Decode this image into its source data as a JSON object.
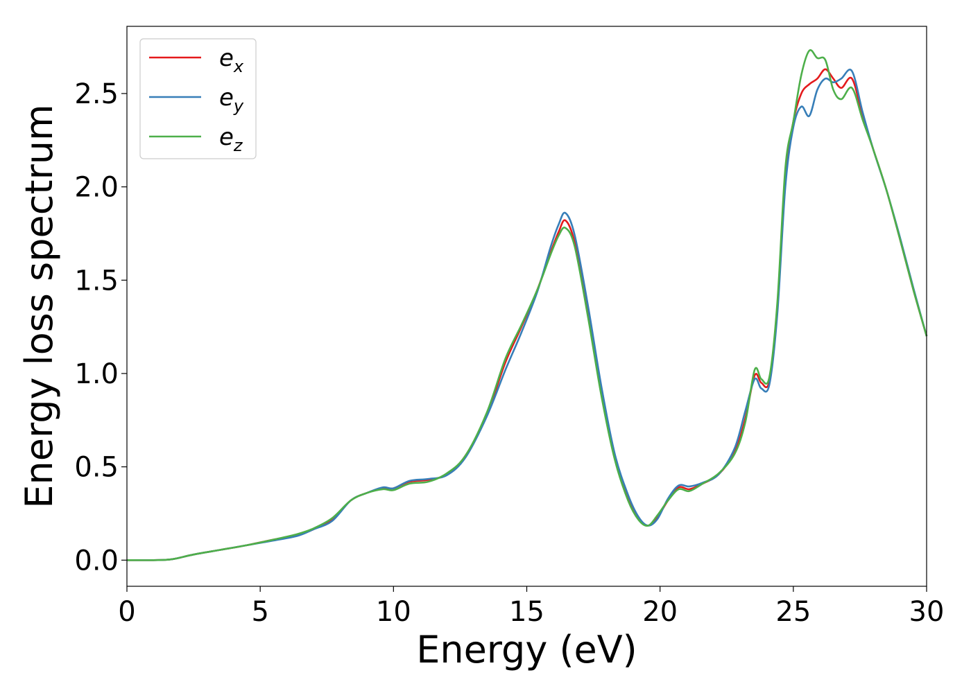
{
  "chart_data": {
    "type": "line",
    "title": "",
    "xlabel": "Energy (eV)",
    "ylabel": "Energy loss spectrum",
    "xlim": [
      0,
      30
    ],
    "ylim": [
      -0.14,
      2.86
    ],
    "xticks": [
      0,
      5,
      10,
      15,
      20,
      25,
      30
    ],
    "xtick_labels": [
      "0",
      "5",
      "10",
      "15",
      "20",
      "25",
      "30"
    ],
    "yticks": [
      0.0,
      0.5,
      1.0,
      1.5,
      2.0,
      2.5
    ],
    "ytick_labels": [
      "0.0",
      "0.5",
      "1.0",
      "1.5",
      "2.0",
      "2.5"
    ],
    "grid": false,
    "legend_position": "top-left",
    "x": [
      0,
      1,
      1.7,
      2.5,
      3.5,
      4.5,
      5.5,
      6.4,
      7.0,
      7.7,
      8.4,
      9.0,
      9.6,
      10.0,
      10.6,
      11.3,
      12.0,
      12.7,
      13.5,
      14.2,
      14.8,
      15.4,
      15.9,
      16.2,
      16.45,
      16.8,
      17.3,
      17.8,
      18.3,
      18.8,
      19.2,
      19.55,
      19.9,
      20.3,
      20.7,
      21.1,
      21.6,
      22.2,
      22.8,
      23.2,
      23.55,
      23.8,
      24.1,
      24.4,
      24.7,
      25.0,
      25.3,
      25.6,
      25.9,
      26.2,
      26.5,
      26.8,
      27.2,
      27.6,
      28.0,
      28.5,
      29.0,
      29.5,
      30.0
    ],
    "series": [
      {
        "name": "e_x",
        "label_main": "e",
        "label_sub": "x",
        "color": "#e41a1c",
        "values": [
          0.0,
          0.0,
          0.005,
          0.03,
          0.055,
          0.08,
          0.11,
          0.135,
          0.165,
          0.22,
          0.32,
          0.36,
          0.385,
          0.385,
          0.42,
          0.43,
          0.46,
          0.56,
          0.78,
          1.06,
          1.25,
          1.45,
          1.65,
          1.76,
          1.82,
          1.7,
          1.32,
          0.9,
          0.55,
          0.33,
          0.22,
          0.185,
          0.23,
          0.32,
          0.39,
          0.38,
          0.41,
          0.46,
          0.58,
          0.76,
          0.99,
          0.95,
          0.96,
          1.35,
          2.05,
          2.35,
          2.5,
          2.55,
          2.58,
          2.63,
          2.58,
          2.53,
          2.58,
          2.38,
          2.2,
          1.98,
          1.72,
          1.45,
          1.2
        ]
      },
      {
        "name": "e_y",
        "label_main": "e",
        "label_sub": "y",
        "color": "#377eb8",
        "values": [
          0.0,
          0.0,
          0.005,
          0.03,
          0.055,
          0.08,
          0.105,
          0.13,
          0.165,
          0.21,
          0.32,
          0.36,
          0.39,
          0.385,
          0.425,
          0.435,
          0.455,
          0.55,
          0.77,
          1.02,
          1.22,
          1.44,
          1.68,
          1.8,
          1.86,
          1.74,
          1.36,
          0.93,
          0.57,
          0.35,
          0.23,
          0.185,
          0.22,
          0.33,
          0.4,
          0.395,
          0.415,
          0.46,
          0.6,
          0.8,
          0.97,
          0.92,
          0.94,
          1.32,
          2.0,
          2.32,
          2.43,
          2.38,
          2.52,
          2.58,
          2.56,
          2.58,
          2.62,
          2.4,
          2.2,
          1.98,
          1.73,
          1.46,
          1.2
        ]
      },
      {
        "name": "e_z",
        "label_main": "e",
        "label_sub": "z",
        "color": "#4daf4a",
        "values": [
          0.0,
          0.0,
          0.005,
          0.03,
          0.055,
          0.08,
          0.11,
          0.14,
          0.17,
          0.225,
          0.32,
          0.36,
          0.38,
          0.375,
          0.41,
          0.42,
          0.465,
          0.56,
          0.79,
          1.08,
          1.26,
          1.45,
          1.64,
          1.74,
          1.78,
          1.68,
          1.3,
          0.88,
          0.54,
          0.32,
          0.215,
          0.185,
          0.24,
          0.32,
          0.38,
          0.37,
          0.41,
          0.465,
          0.57,
          0.74,
          1.02,
          0.97,
          0.98,
          1.38,
          2.1,
          2.35,
          2.6,
          2.73,
          2.69,
          2.68,
          2.52,
          2.47,
          2.53,
          2.36,
          2.2,
          1.98,
          1.72,
          1.45,
          1.2
        ]
      }
    ]
  }
}
